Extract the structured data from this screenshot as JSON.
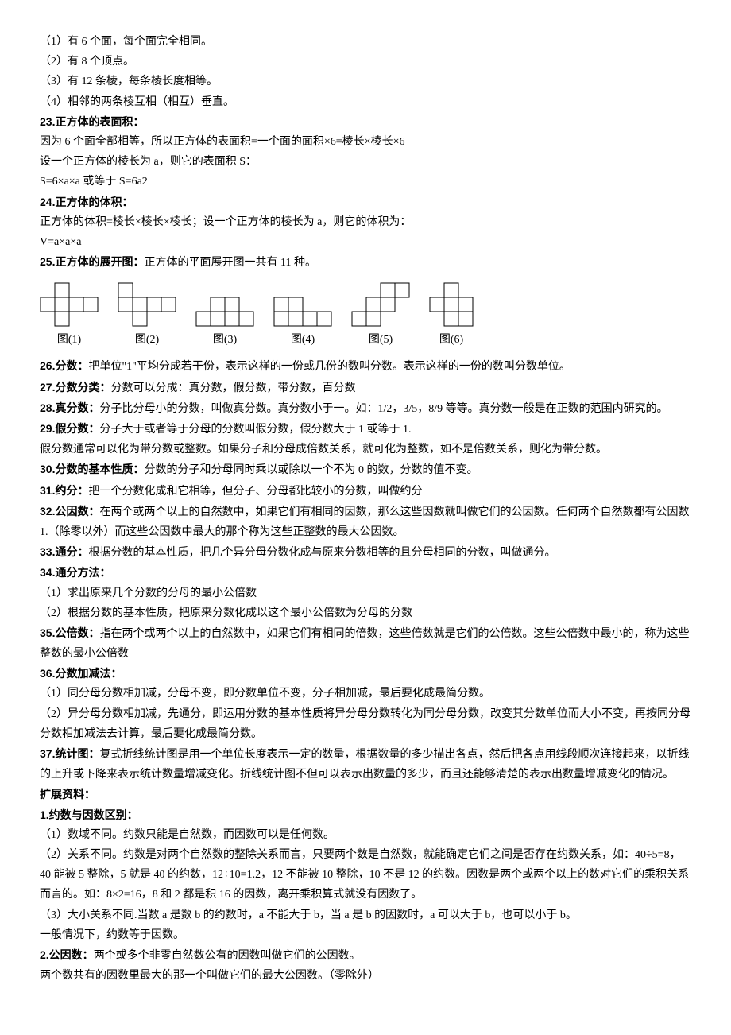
{
  "lines": {
    "l1": "（1）有 6 个面，每个面完全相同。",
    "l2": "（2）有 8 个顶点。",
    "l3": "（3）有 12 条棱，每条棱长度相等。",
    "l4": "（4）相邻的两条棱互相（相互）垂直。",
    "h23": "23.正方体的表面积：",
    "l23a": "因为 6 个面全部相等，所以正方体的表面积=一个面的面积×6=棱长×棱长×6",
    "l23b": "设一个正方体的棱长为 a，则它的表面积 S：",
    "l23c": "S=6×a×a 或等于 S=6a2",
    "h24": "24.正方体的体积：",
    "l24a": "正方体的体积=棱长×棱长×棱长；设一个正方体的棱长为 a，则它的体积为：",
    "l24b": "V=a×a×a",
    "h25a": "25.正方体的展开图：",
    "h25b": "正方体的平面展开图一共有 11 种。",
    "d1": "图(1)",
    "d2": "图(2)",
    "d3": "图(3)",
    "d4": "图(4)",
    "d5": "图(5)",
    "d6": "图(6)",
    "h26a": "26.分数：",
    "h26b": "把单位\"1\"平均分成若干份，表示这样的一份或几份的数叫分数。表示这样的一份的数叫分数单位。",
    "h27a": "27.分数分类：",
    "h27b": "分数可以分成：真分数，假分数，带分数，百分数",
    "h28a": "28.真分数：",
    "h28b": "分子比分母小的分数，叫做真分数。真分数小于一。如：1/2，3/5，8/9 等等。真分数一般是在正数的范围内研究的。",
    "h29a": "29.假分数：",
    "h29b": "分子大于或者等于分母的分数叫假分数，假分数大于 1 或等于 1.",
    "l29c": "假分数通常可以化为带分数或整数。如果分子和分母成倍数关系，就可化为整数，如不是倍数关系，则化为带分数。",
    "h30a": "30.分数的基本性质：",
    "h30b": "分数的分子和分母同时乘以或除以一个不为 0 的数，分数的值不变。",
    "h31a": "31.约分：",
    "h31b": "把一个分数化成和它相等，但分子、分母都比较小的分数，叫做约分",
    "h32a": "32.公因数：",
    "h32b": "在两个或两个以上的自然数中，如果它们有相同的因数，那么这些因数就叫做它们的公因数。任何两个自然数都有公因数 1.（除零以外）而这些公因数中最大的那个称为这些正整数的最大公因数。",
    "h33a": "33.通分：",
    "h33b": "根据分数的基本性质，把几个异分母分数化成与原来分数相等的且分母相同的分数，叫做通分。",
    "h34": "34.通分方法：",
    "l34a": "（1）求出原来几个分数的分母的最小公倍数",
    "l34b": "（2）根据分数的基本性质，把原来分数化成以这个最小公倍数为分母的分数",
    "h35a": "35.公倍数：",
    "h35b": "指在两个或两个以上的自然数中，如果它们有相同的倍数，这些倍数就是它们的公倍数。这些公倍数中最小的，称为这些整数的最小公倍数",
    "h36": "36.分数加减法：",
    "l36a": "（1）同分母分数相加减，分母不变，即分数单位不变，分子相加减，最后要化成最简分数。",
    "l36b": "（2）异分母分数相加减，先通分，即运用分数的基本性质将异分母分数转化为同分母分数，改变其分数单位而大小不变，再按同分母分数相加减法去计算，最后要化成最简分数。",
    "h37a": "37.统计图：",
    "h37b": "复式折线统计图是用一个单位长度表示一定的数量，根据数量的多少描出各点，然后把各点用线段顺次连接起来，以折线的上升或下降来表示统计数量增减变化。折线统计图不但可以表示出数量的多少，而且还能够清楚的表示出数量增减变化的情况。",
    "ext": "扩展资料：",
    "e1": "1.约数与因数区别：",
    "e1a": "（1）数域不同。约数只能是自然数，而因数可以是任何数。",
    "e1b": "（2）关系不同。约数是对两个自然数的整除关系而言，只要两个数是自然数，就能确定它们之间是否存在约数关系，如：40÷5=8，40 能被 5 整除，5 就是 40 的约数，12÷10=1.2，12 不能被 10 整除，10 不是 12 的约数。因数是两个或两个以上的数对它们的乘积关系而言的。如：8×2=16，8 和 2 都是积 16 的因数，离开乘积算式就没有因数了。",
    "e1c": "（3）大小关系不同.当数 a 是数 b 的约数时，a 不能大于 b，当 a 是 b 的因数时，a 可以大于 b，也可以小于 b。",
    "e1d": "一般情况下，约数等于因数。",
    "e2a": "2.公因数：",
    "e2b": "两个或多个非零自然数公有的因数叫做它们的公因数。",
    "e2c": "两个数共有的因数里最大的那一个叫做它们的最大公因数。（零除外）"
  },
  "diagrams": {
    "cell": 18,
    "stroke": "#000000",
    "strokeWidth": 1,
    "nets": [
      {
        "cells": [
          [
            1,
            0
          ],
          [
            0,
            1
          ],
          [
            1,
            1
          ],
          [
            2,
            1
          ],
          [
            3,
            1
          ],
          [
            1,
            2
          ]
        ]
      },
      {
        "cells": [
          [
            0,
            0
          ],
          [
            0,
            1
          ],
          [
            1,
            1
          ],
          [
            2,
            1
          ],
          [
            3,
            1
          ],
          [
            1,
            2
          ]
        ]
      },
      {
        "cells": [
          [
            1,
            0
          ],
          [
            2,
            0
          ],
          [
            0,
            1
          ],
          [
            1,
            1
          ],
          [
            2,
            1
          ],
          [
            3,
            1
          ]
        ]
      },
      {
        "cells": [
          [
            0,
            0
          ],
          [
            1,
            0
          ],
          [
            0,
            1
          ],
          [
            1,
            1
          ],
          [
            2,
            1
          ],
          [
            3,
            1
          ]
        ]
      },
      {
        "cells": [
          [
            2,
            0
          ],
          [
            3,
            0
          ],
          [
            1,
            1
          ],
          [
            2,
            1
          ],
          [
            0,
            2
          ],
          [
            1,
            2
          ]
        ]
      },
      {
        "cells": [
          [
            1,
            0
          ],
          [
            0,
            1
          ],
          [
            1,
            1
          ],
          [
            2,
            1
          ],
          [
            1,
            2
          ],
          [
            2,
            2
          ]
        ]
      }
    ]
  }
}
